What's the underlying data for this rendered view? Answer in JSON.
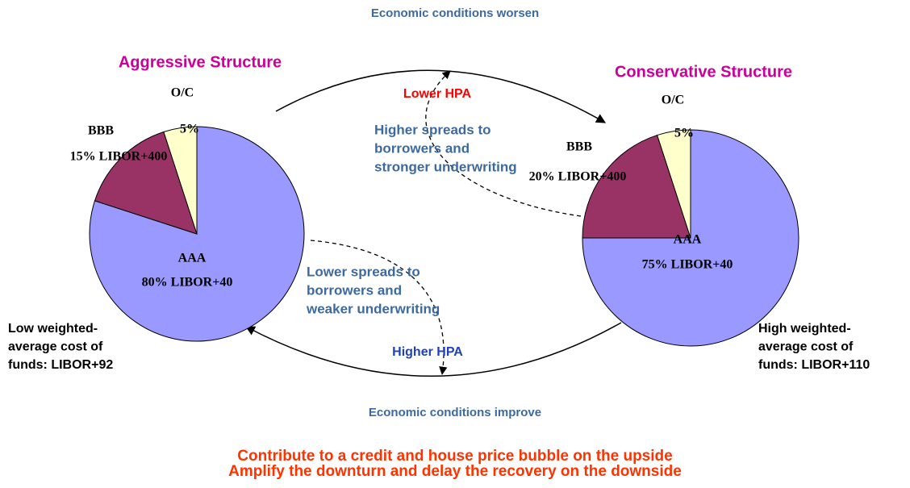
{
  "chart_data": [
    {
      "type": "pie",
      "title": "Aggressive Structure",
      "categories": [
        "AAA",
        "BBB",
        "O/C"
      ],
      "values": [
        80,
        15,
        5
      ],
      "value_labels": [
        "80% LIBOR+40",
        "15% LIBOR+400",
        "5%"
      ],
      "colors": [
        "#9999ff",
        "#993366",
        "#ffffcc"
      ]
    },
    {
      "type": "pie",
      "title": "Conservative Structure",
      "categories": [
        "AAA",
        "BBB",
        "O/C"
      ],
      "values": [
        75,
        20,
        5
      ],
      "value_labels": [
        "75% LIBOR+40",
        "20% LIBOR+400",
        "5%"
      ],
      "colors": [
        "#9999ff",
        "#993366",
        "#ffffcc"
      ]
    }
  ],
  "diagram": {
    "top_label": "Economic conditions worsen",
    "bottom_label": "Economic conditions improve",
    "upper_trigger": "Lower HPA",
    "upper_effect": [
      "Higher spreads to",
      "borrowers and",
      "stronger underwriting"
    ],
    "lower_trigger": "Higher HPA",
    "lower_effect": [
      "Lower spreads to",
      "borrowers and",
      "weaker underwriting"
    ],
    "left_note": [
      "Low weighted-",
      "average cost of",
      "funds: LIBOR+92"
    ],
    "right_note": [
      "High weighted-",
      "average cost of",
      "funds: LIBOR+110"
    ],
    "conclusion": [
      "Contribute to a credit and house price bubble on the upside",
      "Amplify the downturn and delay the recovery on the downside"
    ]
  }
}
